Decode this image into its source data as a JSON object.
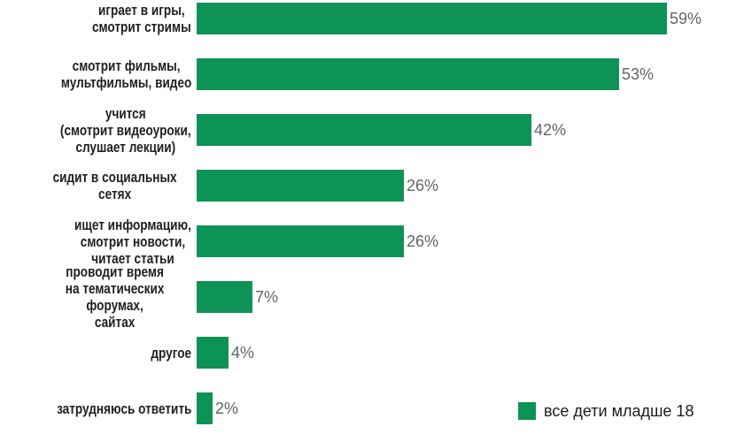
{
  "chart_data": {
    "type": "bar",
    "orientation": "horizontal",
    "title": "",
    "categories": [
      "играет в игры,\nсмотрит стримы",
      "смотрит фильмы,\nмультфильмы, видео",
      "учится\n(смотрит видеоуроки,\nслушает лекции)",
      "сидит в социальных сетях",
      "ищет информацию,\nсмотрит новости,\nчитает статьи",
      "проводит время\nна тематических форумах,\nсайтах",
      "другое",
      "затрудняюсь ответить"
    ],
    "values": [
      59,
      53,
      42,
      26,
      26,
      7,
      4,
      2
    ],
    "value_labels": [
      "59%",
      "53%",
      "42%",
      "26%",
      "26%",
      "7%",
      "4%",
      "2%"
    ],
    "unit": "%",
    "xlim": [
      0,
      66
    ],
    "grid": false,
    "bar_color": "#0c9355",
    "value_label_color": "#636466",
    "category_label_color": "#221e1f",
    "legend_position": "bottom-right",
    "legend": [
      {
        "label": "все дети младше 18",
        "color": "#0c9355"
      }
    ]
  }
}
